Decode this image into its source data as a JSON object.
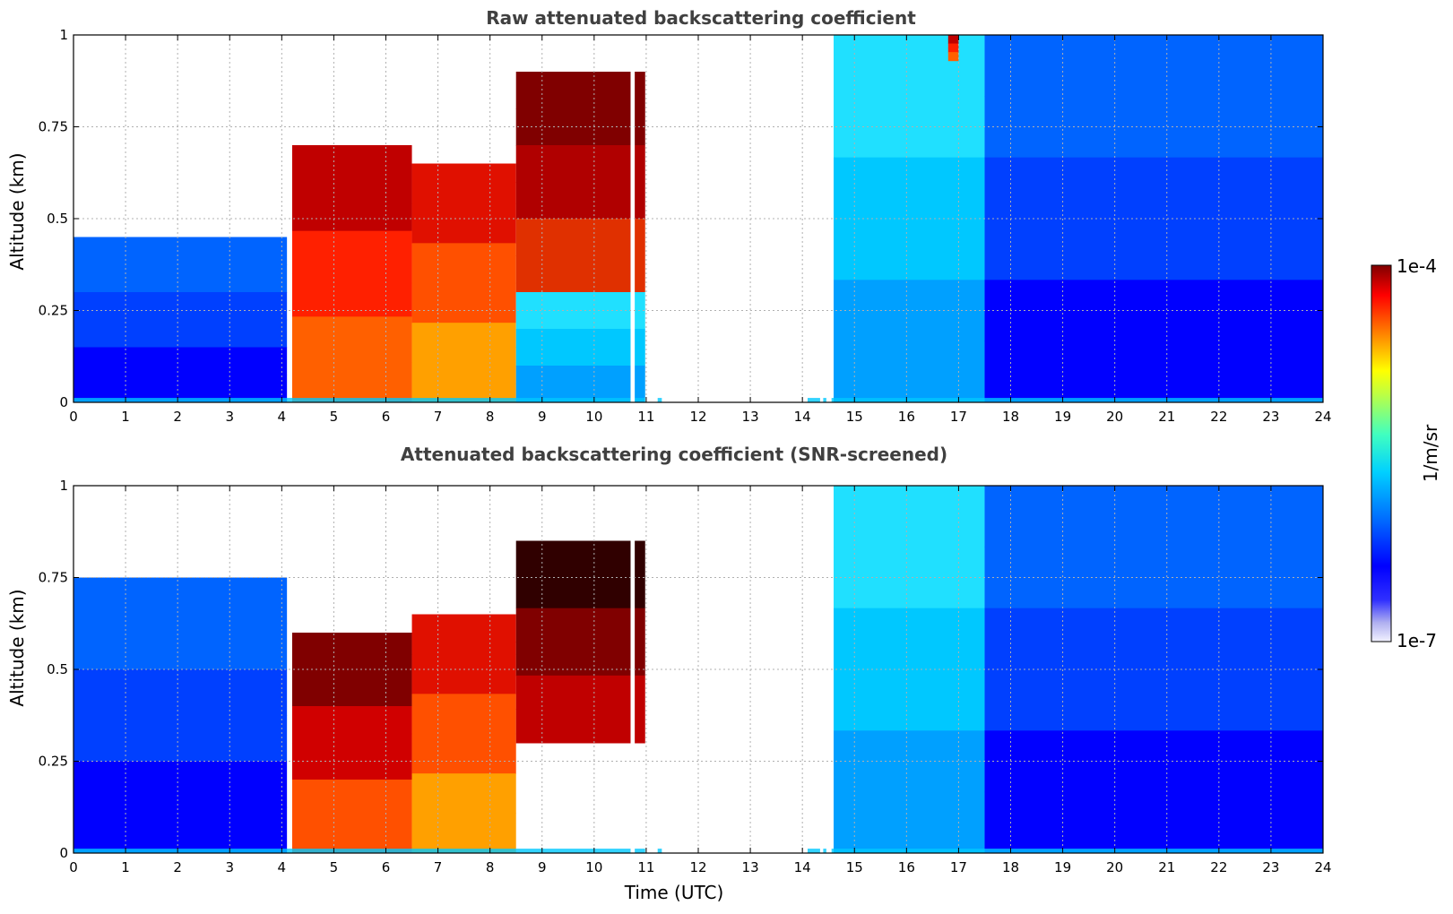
{
  "chart_data": [
    {
      "type": "heatmap",
      "title": "Raw attenuated backscattering coefficient",
      "xlabel": "",
      "ylabel": "Altitude (km)",
      "xlim": [
        0,
        24
      ],
      "ylim": [
        0,
        1
      ],
      "xticks": [
        "0",
        "1",
        "2",
        "3",
        "4",
        "5",
        "6",
        "7",
        "8",
        "9",
        "10",
        "11",
        "12",
        "13",
        "14",
        "15",
        "16",
        "17",
        "18",
        "19",
        "20",
        "21",
        "22",
        "23",
        "24"
      ],
      "yticks": [
        "0",
        "0.25",
        "0.5",
        "0.75",
        "1"
      ],
      "grid": true,
      "data_gaps_utc": [
        [
          10.7,
          10.78
        ],
        [
          10.98,
          11.22
        ],
        [
          11.3,
          14.1
        ],
        [
          14.34,
          14.4
        ],
        [
          14.46,
          14.56
        ]
      ],
      "regions": [
        {
          "x": [
            0,
            4.1
          ],
          "y": [
            0,
            0.45
          ],
          "level": "low (blue)"
        },
        {
          "x": [
            4.2,
            6.5
          ],
          "y": [
            0,
            0.7
          ],
          "level": "high (red)"
        },
        {
          "x": [
            6.5,
            8.5
          ],
          "y": [
            0,
            0.65
          ],
          "level": "high (orange-red)"
        },
        {
          "x": [
            8.5,
            11.0
          ],
          "y": [
            0.3,
            0.9
          ],
          "level": "high (dark red)"
        },
        {
          "x": [
            8.5,
            11.0
          ],
          "y": [
            0,
            0.3
          ],
          "level": "medium (cyan)"
        },
        {
          "x": [
            14.6,
            17.5
          ],
          "y": [
            0,
            1
          ],
          "level": "medium (cyan)"
        },
        {
          "x": [
            16.8,
            17.0
          ],
          "y": [
            0.93,
            1
          ],
          "level": "high (red)"
        },
        {
          "x": [
            17.5,
            24
          ],
          "y": [
            0,
            1
          ],
          "level": "low (blue)"
        }
      ]
    },
    {
      "type": "heatmap",
      "title": "Attenuated backscattering coefficient (SNR-screened)",
      "xlabel": "Time (UTC)",
      "ylabel": "Altitude (km)",
      "xlim": [
        0,
        24
      ],
      "ylim": [
        0,
        1
      ],
      "xticks": [
        "0",
        "1",
        "2",
        "3",
        "4",
        "5",
        "6",
        "7",
        "8",
        "9",
        "10",
        "11",
        "12",
        "13",
        "14",
        "15",
        "16",
        "17",
        "18",
        "19",
        "20",
        "21",
        "22",
        "23",
        "24"
      ],
      "yticks": [
        "0",
        "0.25",
        "0.5",
        "0.75",
        "1"
      ],
      "grid": true,
      "data_gaps_utc": [
        [
          10.7,
          10.78
        ],
        [
          10.98,
          11.22
        ],
        [
          11.3,
          14.1
        ],
        [
          14.34,
          14.4
        ],
        [
          14.46,
          14.56
        ]
      ],
      "regions": [
        {
          "x": [
            0,
            4.1
          ],
          "y": [
            0,
            0.75
          ],
          "level": "low (blue)"
        },
        {
          "x": [
            4.2,
            6.5
          ],
          "y": [
            0,
            0.6
          ],
          "level": "high (red, black saturation near 6 UTC)"
        },
        {
          "x": [
            6.5,
            8.5
          ],
          "y": [
            0,
            0.65
          ],
          "level": "high (orange-red)"
        },
        {
          "x": [
            8.5,
            11.0
          ],
          "y": [
            0.3,
            0.85
          ],
          "level": "high (dark red / black)"
        },
        {
          "x": [
            14.6,
            17.5
          ],
          "y": [
            0,
            1
          ],
          "level": "medium (cyan)"
        },
        {
          "x": [
            17.5,
            24
          ],
          "y": [
            0,
            1
          ],
          "level": "low (blue)"
        }
      ]
    }
  ],
  "colorbar": {
    "max_label": "1e-4",
    "min_label": "1e-7",
    "unit_label": "1/m/sr",
    "colormap": "jet"
  }
}
